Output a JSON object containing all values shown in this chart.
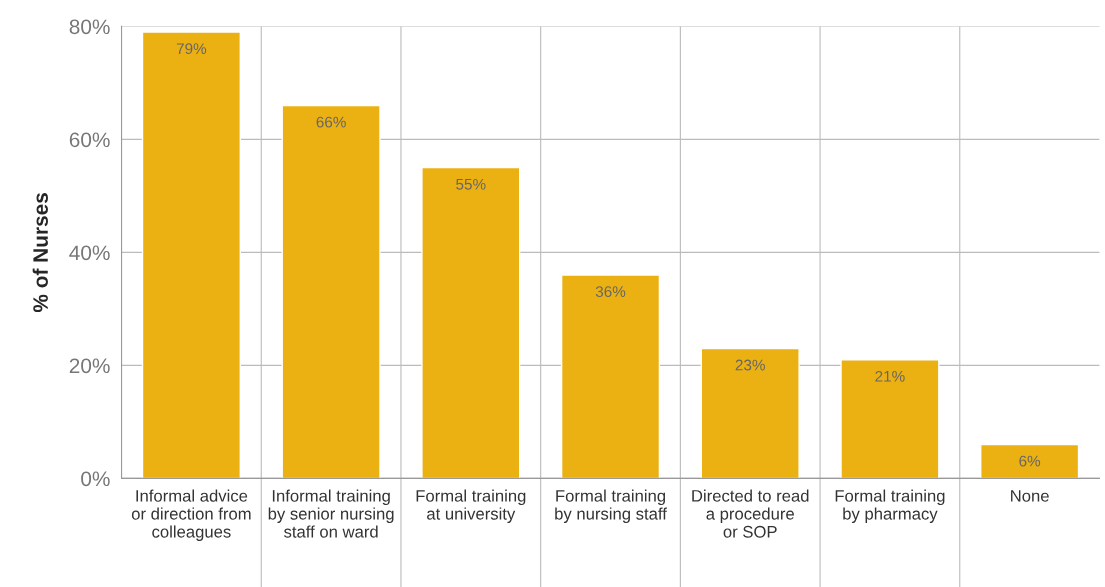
{
  "chart_data": {
    "type": "bar",
    "ylabel": "% of Nurses",
    "categories": [
      "Informal advice\nor direction from\ncolleagues",
      "Informal training\nby senior nursing\nstaff on ward",
      "Formal training\nat university",
      "Formal training\nby nursing staff",
      "Directed to read\na procedure\nor SOP",
      "Formal training\nby pharmacy",
      "None"
    ],
    "values": [
      79,
      66,
      55,
      36,
      23,
      21,
      6
    ],
    "value_labels": [
      "79%",
      "66%",
      "55%",
      "36%",
      "23%",
      "21%",
      "6%"
    ],
    "color": "#ebb012",
    "ylim": [
      0,
      80
    ],
    "yticks": [
      {
        "value": 0,
        "label": "0%"
      },
      {
        "value": 20,
        "label": "20%"
      },
      {
        "value": 40,
        "label": "40%"
      },
      {
        "value": 60,
        "label": "60%"
      },
      {
        "value": 80,
        "label": "80%"
      }
    ],
    "grid": true
  }
}
